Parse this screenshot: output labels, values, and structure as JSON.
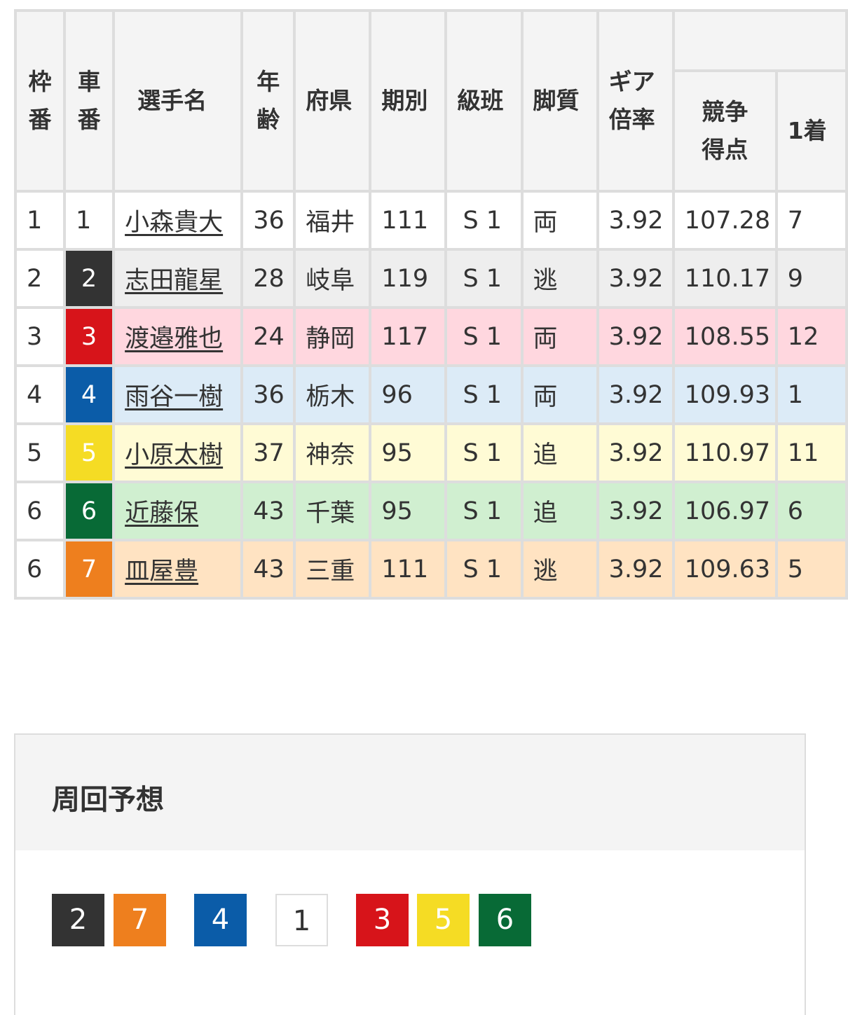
{
  "table": {
    "headers": {
      "waku": "枠番",
      "car": "車番",
      "name": "選手名",
      "age": "年齢",
      "pref": "府県",
      "term": "期別",
      "class": "級班",
      "style": "脚質",
      "gear": "ギア倍率",
      "score": "競争得点",
      "first": "1着"
    },
    "rows": [
      {
        "waku": "1",
        "car": "1",
        "name": "小森貴大",
        "age": "36",
        "pref": "福井",
        "term": "111",
        "class": "S 1",
        "style": "両",
        "gear": "3.92",
        "score": "107.28",
        "first": "7"
      },
      {
        "waku": "2",
        "car": "2",
        "name": "志田龍星",
        "age": "28",
        "pref": "岐阜",
        "term": "119",
        "class": "S 1",
        "style": "逃",
        "gear": "3.92",
        "score": "110.17",
        "first": "9"
      },
      {
        "waku": "3",
        "car": "3",
        "name": "渡邉雅也",
        "age": "24",
        "pref": "静岡",
        "term": "117",
        "class": "S 1",
        "style": "両",
        "gear": "3.92",
        "score": "108.55",
        "first": "12"
      },
      {
        "waku": "4",
        "car": "4",
        "name": "雨谷一樹",
        "age": "36",
        "pref": "栃木",
        "term": "96",
        "class": "S 1",
        "style": "両",
        "gear": "3.92",
        "score": "109.93",
        "first": "1"
      },
      {
        "waku": "5",
        "car": "5",
        "name": "小原太樹",
        "age": "37",
        "pref": "神奈",
        "term": "95",
        "class": "S 1",
        "style": "追",
        "gear": "3.92",
        "score": "110.97",
        "first": "11"
      },
      {
        "waku": "6",
        "car": "6",
        "name": "近藤保",
        "age": "43",
        "pref": "千葉",
        "term": "95",
        "class": "S 1",
        "style": "追",
        "gear": "3.92",
        "score": "106.97",
        "first": "6"
      },
      {
        "waku": "6",
        "car": "7",
        "name": "皿屋豊",
        "age": "43",
        "pref": "三重",
        "term": "111",
        "class": "S 1",
        "style": "逃",
        "gear": "3.92",
        "score": "109.63",
        "first": "5"
      }
    ]
  },
  "colors": {
    "car_bg": {
      "1": "#ffffff",
      "2": "#333333",
      "3": "#d7141a",
      "4": "#0b5ca8",
      "5": "#f5dc24",
      "6": "#086a36",
      "7": "#ee7f1e"
    },
    "row_bg": {
      "1": "#ffffff",
      "2": "#eeeeee",
      "3": "#ffd7df",
      "4": "#dcebf7",
      "5": "#fffbd5",
      "6": "#d0efd0",
      "7": "#ffe3c2"
    }
  },
  "lap_prediction": {
    "title": "周回予想",
    "order": [
      "2",
      "7",
      "4",
      "1",
      "3",
      "5",
      "6"
    ]
  }
}
